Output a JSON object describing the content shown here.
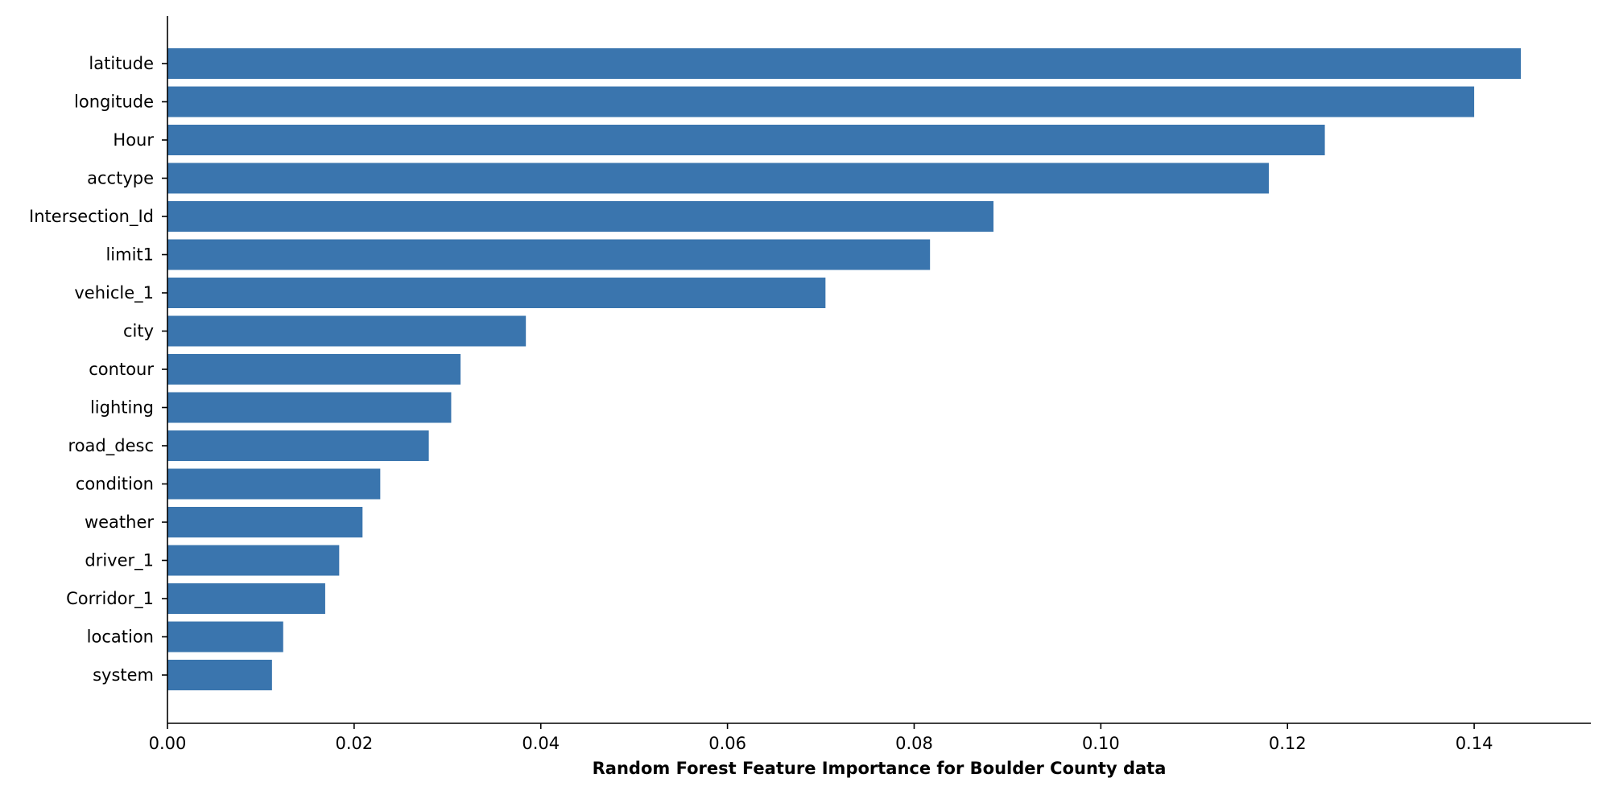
{
  "chart_data": {
    "type": "bar",
    "orientation": "horizontal",
    "title": "",
    "xlabel": "Random Forest Feature Importance for Boulder County data",
    "ylabel": "",
    "categories": [
      "latitude",
      "longitude",
      "Hour",
      "acctype",
      "Intersection_Id",
      "limit1",
      "vehicle_1",
      "city",
      "contour",
      "lighting",
      "road_desc",
      "condition",
      "weather",
      "driver_1",
      "Corridor_1",
      "location",
      "system"
    ],
    "values": [
      0.145,
      0.14,
      0.124,
      0.118,
      0.0885,
      0.0817,
      0.0705,
      0.0384,
      0.0314,
      0.0304,
      0.028,
      0.0228,
      0.0209,
      0.0184,
      0.0169,
      0.0124,
      0.0112
    ],
    "xlim": [
      0,
      0.1525
    ],
    "xticks": [
      "0.00",
      "0.02",
      "0.04",
      "0.06",
      "0.08",
      "0.10",
      "0.12",
      "0.14"
    ],
    "xtick_values": [
      0,
      0.02,
      0.04,
      0.06,
      0.08,
      0.1,
      0.12,
      0.14
    ],
    "bar_color": "#3a75ae",
    "grid": false,
    "legend": "none"
  }
}
